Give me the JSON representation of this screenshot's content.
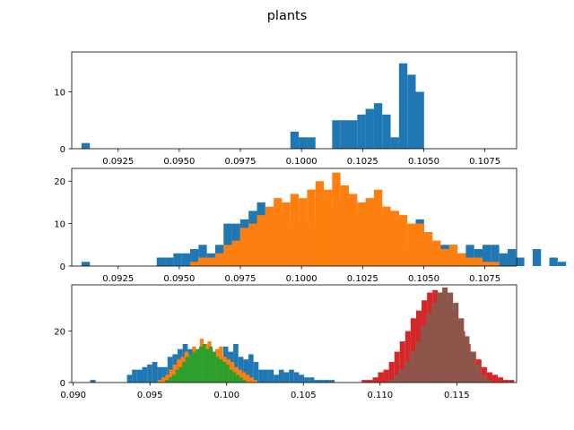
{
  "figure": {
    "title": "plants"
  },
  "colors": {
    "c0": "#1f77b4",
    "c1": "#ff7f0e",
    "c2": "#2ca02c",
    "c3": "#d62728",
    "c4": "#9467bd",
    "c5": "#8c564b"
  },
  "chart_data": [
    {
      "type": "histogram",
      "title": "",
      "xlim": [
        0.0906,
        0.1088
      ],
      "ylim": [
        0,
        17
      ],
      "yticks": [
        "0",
        "10"
      ],
      "xticks": [
        "0.0925",
        "0.0950",
        "0.0975",
        "0.1000",
        "0.1025",
        "0.1050",
        "0.1075"
      ],
      "bin_start": 0.091,
      "bin_width": 0.0003418,
      "series": [
        {
          "color": "c0",
          "values": [
            1,
            0,
            0,
            0,
            0,
            0,
            0,
            0,
            0,
            0,
            0,
            0,
            0,
            0,
            0,
            0,
            0,
            0,
            0,
            0,
            0,
            0,
            0,
            0,
            0,
            3,
            2,
            2,
            0,
            0,
            5,
            5,
            5,
            6,
            7,
            8,
            6,
            2,
            15,
            13,
            10,
            0,
            0,
            0,
            0,
            0,
            0,
            0,
            0,
            0,
            0,
            0,
            0
          ]
        }
      ]
    },
    {
      "type": "histogram",
      "xlim": [
        0.0906,
        0.1088
      ],
      "ylim": [
        0,
        23
      ],
      "yticks": [
        "0",
        "10",
        "20"
      ],
      "xticks": [
        "0.0925",
        "0.0950",
        "0.0975",
        "0.1000",
        "0.1025",
        "0.1050",
        "0.1075"
      ],
      "series": [
        {
          "color": "c0",
          "values": [
            1,
            0,
            0,
            0,
            0,
            0,
            0,
            0,
            0,
            2,
            2,
            3,
            3,
            4,
            5,
            3,
            5,
            10,
            10,
            11,
            13,
            15,
            13,
            11,
            10,
            9,
            10,
            7,
            10,
            14,
            10,
            15,
            13,
            9,
            15,
            13,
            11,
            13,
            8,
            4,
            11,
            8,
            5,
            5,
            5,
            3,
            5,
            4,
            5,
            5,
            3,
            4,
            2,
            0,
            4,
            0,
            2,
            1,
            0,
            0,
            2,
            0,
            0,
            0,
            0,
            1
          ]
        },
        {
          "color": "c1",
          "values": [
            0,
            0,
            0,
            0,
            0,
            0,
            0,
            0,
            0,
            0,
            0,
            0,
            0,
            1,
            2,
            2,
            3,
            5,
            6,
            9,
            10,
            12,
            14,
            16,
            15,
            17,
            16,
            18,
            20,
            18,
            22,
            19,
            17,
            15,
            16,
            18,
            14,
            13,
            12,
            10,
            10,
            8,
            6,
            4,
            5,
            3,
            2,
            2,
            1,
            1,
            0,
            0,
            0,
            0,
            0,
            0,
            0,
            0,
            0,
            0,
            0,
            0,
            0,
            0,
            0,
            0
          ]
        }
      ]
    },
    {
      "type": "histogram",
      "xlim": [
        0.0899,
        0.1189
      ],
      "ylim": [
        0,
        38
      ],
      "yticks": [
        "0",
        "20"
      ],
      "xticks": [
        "0.090",
        "0.095",
        "0.100",
        "0.105",
        "0.110",
        "0.115"
      ],
      "series": [
        {
          "color": "c0",
          "label": "",
          "values": []
        },
        {
          "color": "c3",
          "values": []
        }
      ]
    }
  ]
}
